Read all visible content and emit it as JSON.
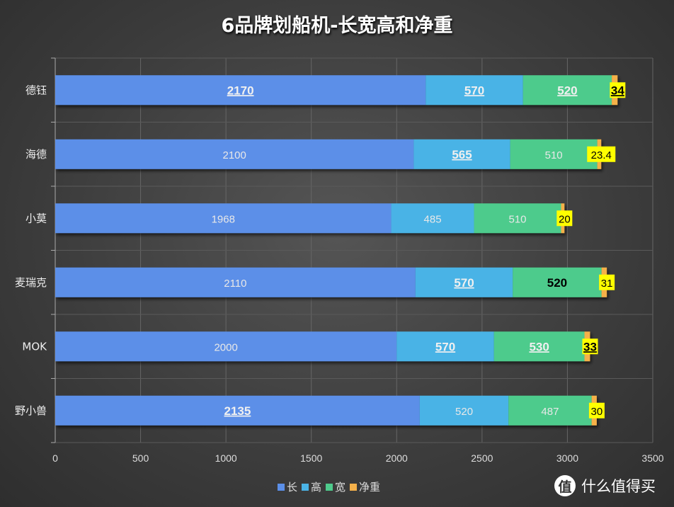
{
  "chart_data": {
    "type": "bar",
    "orientation": "horizontal",
    "stacked": true,
    "title": "6品牌划船机-长宽高和净重",
    "categories": [
      "德钰",
      "海德",
      "小莫",
      "麦瑞克",
      "MOK",
      "野小兽"
    ],
    "series": [
      {
        "name": "长",
        "color": "#5b8fe8",
        "values": [
          2170,
          2100,
          1968,
          2110,
          2000,
          2135
        ],
        "emphasis": [
          "bold-underline",
          "plain",
          "plain",
          "plain",
          "plain",
          "bold-underline"
        ]
      },
      {
        "name": "高",
        "color": "#4ab3e6",
        "values": [
          570,
          565,
          485,
          570,
          570,
          520
        ],
        "emphasis": [
          "bold-underline",
          "bold-underline",
          "plain",
          "bold-underline",
          "bold-underline",
          "plain"
        ]
      },
      {
        "name": "宽",
        "color": "#4ecb8c",
        "values": [
          520,
          510,
          510,
          520,
          530,
          487
        ],
        "emphasis": [
          "bold-underline",
          "plain",
          "plain",
          "bold-black",
          "bold-underline",
          "plain"
        ]
      },
      {
        "name": "净重",
        "color": "#f5b14a",
        "values": [
          34,
          23.4,
          20,
          31,
          33,
          30
        ],
        "emphasis": [
          "highlight-bold-underline",
          "highlight",
          "highlight",
          "highlight",
          "highlight-bold-underline",
          "highlight"
        ]
      }
    ],
    "xlim": [
      0,
      3500
    ],
    "xticks": [
      "0",
      "500",
      "1000",
      "1500",
      "2000",
      "2500",
      "3000",
      "3500"
    ],
    "grid": true,
    "legend_position": "bottom",
    "highlight_color": "#ffff00"
  },
  "watermark": {
    "glyph": "值",
    "text": "什么值得买"
  }
}
